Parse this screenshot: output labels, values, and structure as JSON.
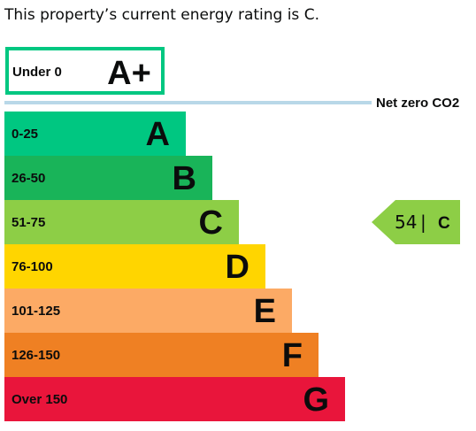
{
  "summary": "This property’s current energy rating is C.",
  "chart_data": {
    "type": "bar",
    "title": "",
    "categories": [
      "Under 0",
      "0-25",
      "26-50",
      "51-75",
      "76-100",
      "101-125",
      "126-150",
      "Over 150"
    ],
    "letters": [
      "A+",
      "A",
      "B",
      "C",
      "D",
      "E",
      "F",
      "G"
    ],
    "colors": [
      "#ffffff",
      "#00c781",
      "#19b459",
      "#8dce46",
      "#ffd500",
      "#fcaa65",
      "#ef8023",
      "#e9153b"
    ],
    "outline_color": "#00c781",
    "net_zero_label": "Net zero CO2",
    "net_zero_line_color": "#b9d8e8",
    "current": {
      "score": "54",
      "separator": "|",
      "letter": "C",
      "band_index": 3,
      "color": "#8dce46"
    }
  }
}
